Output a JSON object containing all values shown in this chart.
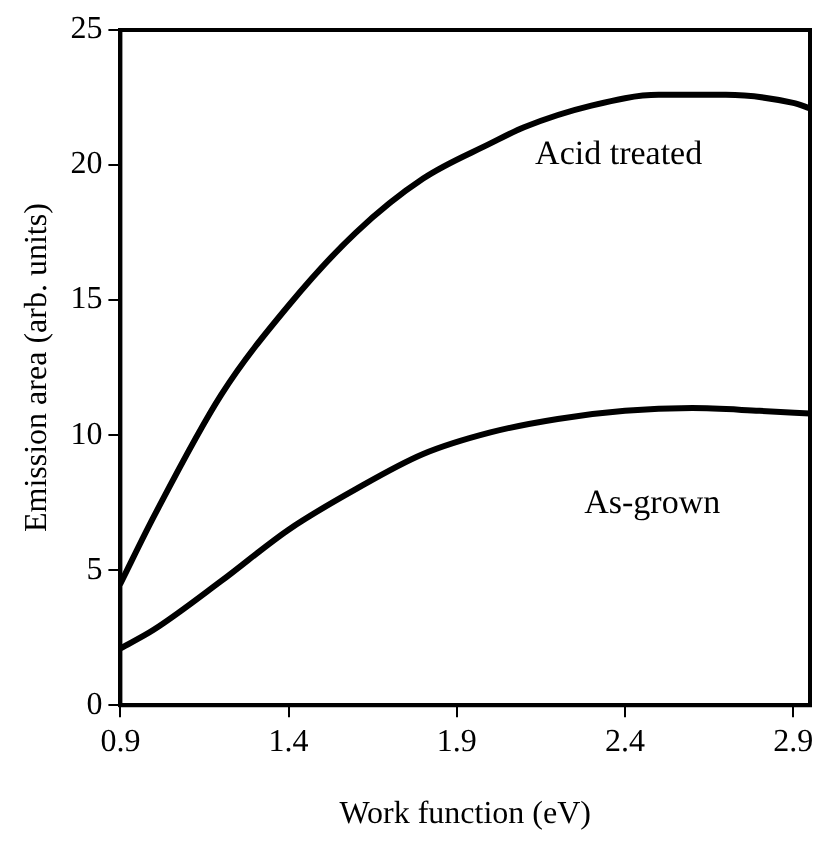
{
  "chart_data": {
    "type": "line",
    "xlabel": "Work function (eV)",
    "ylabel": "Emission area (arb. units)",
    "xlim": [
      0.9,
      2.95
    ],
    "xticks": [
      0.9,
      1.4,
      1.9,
      2.4,
      2.9
    ],
    "ylim": [
      0,
      25
    ],
    "yticks": [
      0,
      5,
      10,
      15,
      20,
      25
    ],
    "grid": false,
    "legend": false,
    "marker": "none",
    "line_style": "solid",
    "series": [
      {
        "name": "Acid treated",
        "color": "#000000",
        "x": [
          0.9,
          1.0,
          1.2,
          1.4,
          1.6,
          1.8,
          2.0,
          2.1,
          2.3,
          2.5,
          2.7,
          2.9,
          2.95
        ],
        "values": [
          4.5,
          7,
          11.5,
          14.8,
          17.5,
          19.5,
          20.8,
          21.4,
          22.2,
          22.6,
          22.6,
          22.3,
          22.1
        ]
      },
      {
        "name": "As-grown",
        "color": "#000000",
        "x": [
          0.9,
          1.0,
          1.2,
          1.4,
          1.6,
          1.8,
          2.0,
          2.2,
          2.4,
          2.6,
          2.8,
          2.95
        ],
        "values": [
          2.1,
          2.8,
          4.6,
          6.5,
          8.0,
          9.3,
          10.1,
          10.6,
          10.9,
          11.0,
          10.9,
          10.8
        ]
      }
    ]
  }
}
